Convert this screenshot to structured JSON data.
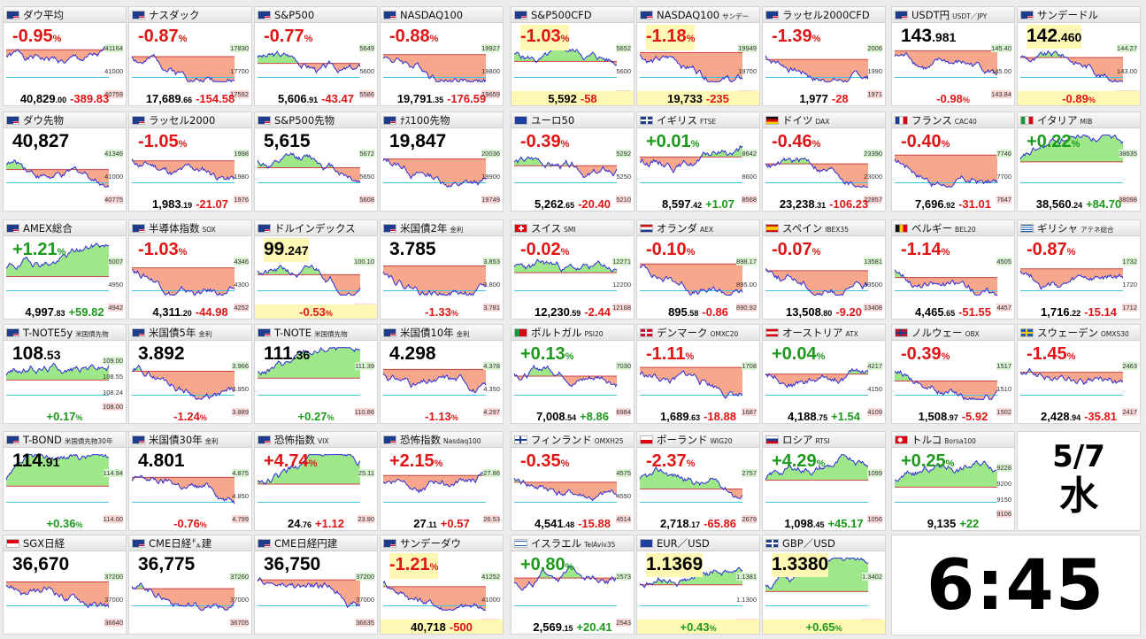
{
  "tiles": [
    {
      "name": "ダウ平均",
      "flag": "us",
      "main": "-0.95",
      "mainDir": "dn",
      "labels": [
        "41164",
        "41000",
        "40759"
      ],
      "footInt": "40,829",
      "footDec": ".00",
      "chg": "-389.83",
      "chgDir": "dn",
      "seed": 1
    },
    {
      "name": "ナスダック",
      "flag": "us",
      "main": "-0.87",
      "mainDir": "dn",
      "labels": [
        "17830",
        "17700",
        "17592"
      ],
      "footInt": "17,689",
      "footDec": ".66",
      "chg": "-154.58",
      "chgDir": "dn",
      "seed": 2
    },
    {
      "name": "S&P500",
      "flag": "us",
      "main": "-0.77",
      "mainDir": "dn",
      "labels": [
        "5649",
        "5600",
        "5586"
      ],
      "footInt": "5,606",
      "footDec": ".91",
      "chg": "-43.47",
      "chgDir": "dn",
      "seed": 3
    },
    {
      "name": "NASDAQ100",
      "flag": "us",
      "main": "-0.88",
      "mainDir": "dn",
      "labels": [
        "19927",
        "19800",
        "19659"
      ],
      "footInt": "19,791",
      "footDec": ".35",
      "chg": "-176.59",
      "chgDir": "dn",
      "seed": 4
    },
    {
      "name": "S&P500CFD",
      "flag": "us",
      "main": "-1.03",
      "mainDir": "dn",
      "mainHl": true,
      "labels": [
        "5652",
        "5600",
        "5584"
      ],
      "footInt": "5,592",
      "footDec": "",
      "chg": "-58",
      "chgDir": "dn",
      "footHl": true,
      "seed": 5
    },
    {
      "name": "NASDAQ100",
      "sub": "サンデー",
      "flag": "us",
      "main": "-1.18",
      "mainDir": "dn",
      "mainHl": true,
      "labels": [
        "19949",
        "19700",
        "19655"
      ],
      "footInt": "19,733",
      "footDec": "",
      "chg": "-235",
      "chgDir": "dn",
      "footHl": true,
      "seed": 6
    },
    {
      "name": "ラッセル2000CFD",
      "flag": "us",
      "main": "-1.39",
      "mainDir": "dn",
      "labels": [
        "2006",
        "1990",
        "1971"
      ],
      "footInt": "1,977",
      "footDec": "",
      "chg": "-28",
      "chgDir": "dn",
      "seed": 7
    },
    {
      "name": "USDT円",
      "sub": "USDT／JPY",
      "flag": "us",
      "priceInt": "143",
      "priceDec": ".981",
      "labels": [
        "145.40",
        "145.00",
        "143.84"
      ],
      "footChg": "-0.98",
      "footChgDir": "dn",
      "seed": 8
    },
    {
      "name": "サンデードル",
      "flag": "us",
      "priceInt": "142",
      "priceDec": ".460",
      "priceHl": true,
      "labels": [
        "144.27",
        "143.00",
        "142.35"
      ],
      "footChg": "-0.89",
      "footChgDir": "dn",
      "footHl": true,
      "seed": 9
    },
    {
      "name": "ダウ先物",
      "flag": "us",
      "priceInt": "40,827",
      "priceDec": "",
      "labels": [
        "41346",
        "41000",
        "40775"
      ],
      "seed": 10
    },
    {
      "name": "ラッセル2000",
      "flag": "us",
      "main": "-1.05",
      "mainDir": "dn",
      "labels": [
        "1998",
        "1980",
        "1976"
      ],
      "footInt": "1,983",
      "footDec": ".19",
      "chg": "-21.07",
      "chgDir": "dn",
      "seed": 11
    },
    {
      "name": "S&P500先物",
      "flag": "us",
      "priceInt": "5,615",
      "priceDec": "",
      "labels": [
        "5672",
        "5650",
        "5608"
      ],
      "seed": 12
    },
    {
      "name": "ﾅｽ100先物",
      "flag": "us",
      "priceInt": "19,847",
      "priceDec": "",
      "labels": [
        "20036",
        "19900",
        "19749"
      ],
      "seed": 13
    },
    {
      "name": "ユーロ50",
      "flag": "eu",
      "main": "-0.39",
      "mainDir": "dn",
      "labels": [
        "5292",
        "5250",
        "5210"
      ],
      "footInt": "5,262",
      "footDec": ".65",
      "chg": "-20.40",
      "chgDir": "dn",
      "seed": 14
    },
    {
      "name": "イギリス",
      "sub": "FTSE",
      "flag": "uk",
      "main": "+0.01",
      "mainDir": "up",
      "labels": [
        "8642",
        "8600",
        "8568"
      ],
      "footInt": "8,597",
      "footDec": ".42",
      "chg": "+1.07",
      "chgDir": "up",
      "seed": 15
    },
    {
      "name": "ドイツ",
      "sub": "DAX",
      "flag": "de",
      "main": "-0.46",
      "mainDir": "dn",
      "labels": [
        "23390",
        "23000",
        "22857"
      ],
      "footInt": "23,238",
      "footDec": ".31",
      "chg": "-106.23",
      "chgDir": "dn",
      "seed": 16
    },
    {
      "name": "フランス",
      "sub": "CAC40",
      "flag": "fr",
      "main": "-0.40",
      "mainDir": "dn",
      "labels": [
        "7746",
        "7700",
        "7647"
      ],
      "footInt": "7,696",
      "footDec": ".92",
      "chg": "-31.01",
      "chgDir": "dn",
      "seed": 17
    },
    {
      "name": "イタリア",
      "sub": "MIB",
      "flag": "it",
      "main": "+0.22",
      "mainDir": "up",
      "labels": [
        "38635",
        "38098"
      ],
      "footInt": "38,560",
      "footDec": ".24",
      "chg": "+84.70",
      "chgDir": "up",
      "seed": 18
    },
    {
      "name": "AMEX総合",
      "flag": "us",
      "main": "+1.21",
      "mainDir": "up",
      "labels": [
        "5007",
        "4950",
        "4942"
      ],
      "footInt": "4,997",
      "footDec": ".83",
      "chg": "+59.82",
      "chgDir": "up",
      "seed": 19
    },
    {
      "name": "半導体指数",
      "sub": "SOX",
      "flag": "us",
      "main": "-1.03",
      "mainDir": "dn",
      "labels": [
        "4346",
        "4300",
        "4252"
      ],
      "footInt": "4,311",
      "footDec": ".20",
      "chg": "-44.98",
      "chgDir": "dn",
      "seed": 20
    },
    {
      "name": "ドルインデックス",
      "flag": "us",
      "priceInt": "99",
      "priceDec": ".247",
      "priceHl": true,
      "labels": [
        "100.10",
        "99.166"
      ],
      "footChg": "-0.53",
      "footChgDir": "dn",
      "footHl": true,
      "seed": 21
    },
    {
      "name": "米国債2年",
      "sub": "金利",
      "flag": "us",
      "priceInt": "3.785",
      "priceDec": "",
      "labels": [
        "3.853",
        "3.800",
        "3.781"
      ],
      "footChg": "-1.33",
      "footChgDir": "dn",
      "seed": 22
    },
    {
      "name": "スイス",
      "sub": "SMI",
      "flag": "ch",
      "main": "-0.02",
      "mainDir": "dn",
      "labels": [
        "12271",
        "12200",
        "12168"
      ],
      "footInt": "12,230",
      "footDec": ".59",
      "chg": "-2.44",
      "chgDir": "dn",
      "seed": 23
    },
    {
      "name": "オランダ",
      "sub": "AEX",
      "flag": "nl",
      "main": "-0.10",
      "mainDir": "dn",
      "labels": [
        "898.17",
        "895.00",
        "890.92"
      ],
      "footInt": "895",
      "footDec": ".58",
      "chg": "-0.86",
      "chgDir": "dn",
      "seed": 24
    },
    {
      "name": "スペイン",
      "sub": "IBEX35",
      "flag": "es",
      "main": "-0.07",
      "mainDir": "dn",
      "labels": [
        "13581",
        "13500",
        "13408"
      ],
      "footInt": "13,508",
      "footDec": ".80",
      "chg": "-9.20",
      "chgDir": "dn",
      "seed": 25
    },
    {
      "name": "ベルギー",
      "sub": "BEL20",
      "flag": "be",
      "main": "-1.14",
      "mainDir": "dn",
      "labels": [
        "4505",
        "4457"
      ],
      "footInt": "4,465",
      "footDec": ".65",
      "chg": "-51.55",
      "chgDir": "dn",
      "seed": 26
    },
    {
      "name": "ギリシャ",
      "sub": "アテネ総合",
      "flag": "gr",
      "main": "-0.87",
      "mainDir": "dn",
      "labels": [
        "1732",
        "1720",
        "1712"
      ],
      "footInt": "1,716",
      "footDec": ".22",
      "chg": "-15.14",
      "chgDir": "dn",
      "seed": 27
    },
    {
      "name": "T-NOTE5y",
      "sub": "米国債先物",
      "flag": "us",
      "priceInt": "108",
      "priceDec": ".53",
      "labels": [
        "109.00",
        "108.55",
        "108.24",
        "108.00"
      ],
      "footChg": "+0.17",
      "footChgDir": "up",
      "seed": 28
    },
    {
      "name": "米国債5年",
      "sub": "金利",
      "flag": "us",
      "priceInt": "3.892",
      "priceDec": "",
      "labels": [
        "3.966",
        "3.950",
        "3.889"
      ],
      "footChg": "-1.24",
      "footChgDir": "dn",
      "seed": 29
    },
    {
      "name": "T-NOTE",
      "sub": "米国債先物",
      "flag": "us",
      "priceInt": "111",
      "priceDec": ".36",
      "labels": [
        "111.39",
        "110.86"
      ],
      "footChg": "+0.27",
      "footChgDir": "up",
      "seed": 30
    },
    {
      "name": "米国債10年",
      "sub": "金利",
      "flag": "us",
      "priceInt": "4.298",
      "priceDec": "",
      "labels": [
        "4.378",
        "4.350",
        "4.297"
      ],
      "footChg": "-1.13",
      "footChgDir": "dn",
      "seed": 31
    },
    {
      "name": "ポルトガル",
      "sub": "PSI20",
      "flag": "pt",
      "main": "+0.13",
      "mainDir": "up",
      "labels": [
        "7030",
        "6984"
      ],
      "footInt": "7,008",
      "footDec": ".54",
      "chg": "+8.86",
      "chgDir": "up",
      "seed": 32
    },
    {
      "name": "デンマーク",
      "sub": "OMXC20",
      "flag": "dk",
      "main": "-1.11",
      "mainDir": "dn",
      "labels": [
        "1708",
        "1687"
      ],
      "footInt": "1,689",
      "footDec": ".63",
      "chg": "-18.88",
      "chgDir": "dn",
      "seed": 33
    },
    {
      "name": "オーストリア",
      "sub": "ATX",
      "flag": "at",
      "main": "+0.04",
      "mainDir": "up",
      "labels": [
        "4217",
        "4150",
        "4109"
      ],
      "footInt": "4,188",
      "footDec": ".75",
      "chg": "+1.54",
      "chgDir": "up",
      "seed": 34
    },
    {
      "name": "ノルウェー",
      "sub": "OBX",
      "flag": "no",
      "main": "-0.39",
      "mainDir": "dn",
      "labels": [
        "1517",
        "1510",
        "1502"
      ],
      "footInt": "1,508",
      "footDec": ".97",
      "chg": "-5.92",
      "chgDir": "dn",
      "seed": 35
    },
    {
      "name": "スウェーデン",
      "sub": "OMXS30",
      "flag": "se",
      "main": "-1.45",
      "mainDir": "dn",
      "labels": [
        "2463",
        "2417"
      ],
      "footInt": "2,428",
      "footDec": ".94",
      "chg": "-35.81",
      "chgDir": "dn",
      "seed": 36
    },
    {
      "name": "T-BOND",
      "sub": "米国債先物30年",
      "flag": "us",
      "priceInt": "114",
      "priceDec": ".91",
      "labels": [
        "114.94",
        "114.00"
      ],
      "footChg": "+0.36",
      "footChgDir": "up",
      "seed": 37
    },
    {
      "name": "米国債30年",
      "sub": "金利",
      "flag": "us",
      "priceInt": "4.801",
      "priceDec": "",
      "labels": [
        "4.875",
        "4.850",
        "4.799"
      ],
      "footChg": "-0.76",
      "footChgDir": "dn",
      "seed": 38
    },
    {
      "name": "恐怖指数",
      "sub": "VIX",
      "flag": "us",
      "main": "+4.74",
      "mainDir": "up",
      "mainRed": true,
      "labels": [
        "25.11",
        "23.90"
      ],
      "footInt": "24",
      "footDec": ".76",
      "chg": "+1.12",
      "chgDir": "dn",
      "seed": 39
    },
    {
      "name": "恐怖指数",
      "sub": "Nasdaq100",
      "flag": "us",
      "main": "+2.15",
      "mainDir": "up",
      "mainRed": true,
      "labels": [
        "27.86",
        "26.53"
      ],
      "footInt": "27",
      "footDec": ".11",
      "chg": "+0.57",
      "chgDir": "dn",
      "seed": 40
    },
    {
      "name": "フィンランド",
      "sub": "OMXH25",
      "flag": "fi",
      "main": "-0.35",
      "mainDir": "dn",
      "labels": [
        "4575",
        "4550",
        "4514"
      ],
      "footInt": "4,541",
      "footDec": ".48",
      "chg": "-15.88",
      "chgDir": "dn",
      "seed": 41
    },
    {
      "name": "ポーランド",
      "sub": "WIG20",
      "flag": "pl",
      "main": "-2.37",
      "mainDir": "dn",
      "labels": [
        "2757",
        "2679"
      ],
      "footInt": "2,718",
      "footDec": ".17",
      "chg": "-65.86",
      "chgDir": "dn",
      "seed": 42
    },
    {
      "name": "ロシア",
      "sub": "RTSI",
      "flag": "ru",
      "main": "+4.29",
      "mainDir": "up",
      "labels": [
        "1099",
        "1056"
      ],
      "footInt": "1,098",
      "footDec": ".45",
      "chg": "+45.17",
      "chgDir": "up",
      "seed": 43
    },
    {
      "name": "トルコ",
      "sub": "Borsa100",
      "flag": "tr",
      "main": "+0.25",
      "mainDir": "up",
      "labels": [
        "9228",
        "9200",
        "9150",
        "9106"
      ],
      "footInt": "9,135",
      "footDec": "",
      "chg": "+22",
      "chgDir": "up",
      "seed": 44
    },
    {
      "name": "SGX日経",
      "flag": "sg",
      "priceInt": "36,670",
      "priceDec": "",
      "labels": [
        "37200",
        "37000",
        "36640"
      ],
      "seed": 45
    },
    {
      "name": "CME日経㌦建",
      "flag": "us",
      "priceInt": "36,775",
      "priceDec": "",
      "labels": [
        "37260",
        "37000",
        "36705"
      ],
      "seed": 46
    },
    {
      "name": "CME日経円建",
      "flag": "us",
      "priceInt": "36,750",
      "priceDec": "",
      "labels": [
        "37200",
        "37000",
        "36635"
      ],
      "seed": 47
    },
    {
      "name": "サンデーダウ",
      "flag": "us",
      "main": "-1.21",
      "mainDir": "dn",
      "mainHl": true,
      "labels": [
        "41252",
        "41000",
        "40665"
      ],
      "footInt": "40,718",
      "footDec": "",
      "chg": "-500",
      "chgDir": "dn",
      "footHl": true,
      "seed": 48
    },
    {
      "name": "イスラエル",
      "sub": "TelAviv35",
      "flag": "il",
      "main": "+0.80",
      "mainDir": "up",
      "labels": [
        "2573",
        "2543"
      ],
      "footInt": "2,569",
      "footDec": ".15",
      "chg": "+20.41",
      "chgDir": "up",
      "seed": 49
    },
    {
      "name": "EUR／USD",
      "flag": "eu",
      "priceInt": "1.1369",
      "priceDec": "",
      "priceHl": true,
      "labels": [
        "1.1381",
        "1.1300",
        "1.1277"
      ],
      "footChg": "+0.43",
      "footChgDir": "up",
      "footHl": true,
      "seed": 50
    },
    {
      "name": "GBP／USD",
      "flag": "uk",
      "priceInt": "1.3380",
      "priceDec": "",
      "priceHl": true,
      "labels": [
        "1.3402",
        "1.3258"
      ],
      "footChg": "+0.65",
      "footChgDir": "up",
      "footHl": true,
      "seed": 51
    }
  ],
  "date": {
    "day": "5/7",
    "weekday": "水"
  },
  "clock": {
    "time": "6:45"
  },
  "colors": {
    "up": "#1b9a1b",
    "down": "#e01515",
    "highlight": "#fff8b5",
    "line": "#2c2cd8",
    "fillDown": "#f7a88c",
    "fillUp": "#9fe88a"
  }
}
